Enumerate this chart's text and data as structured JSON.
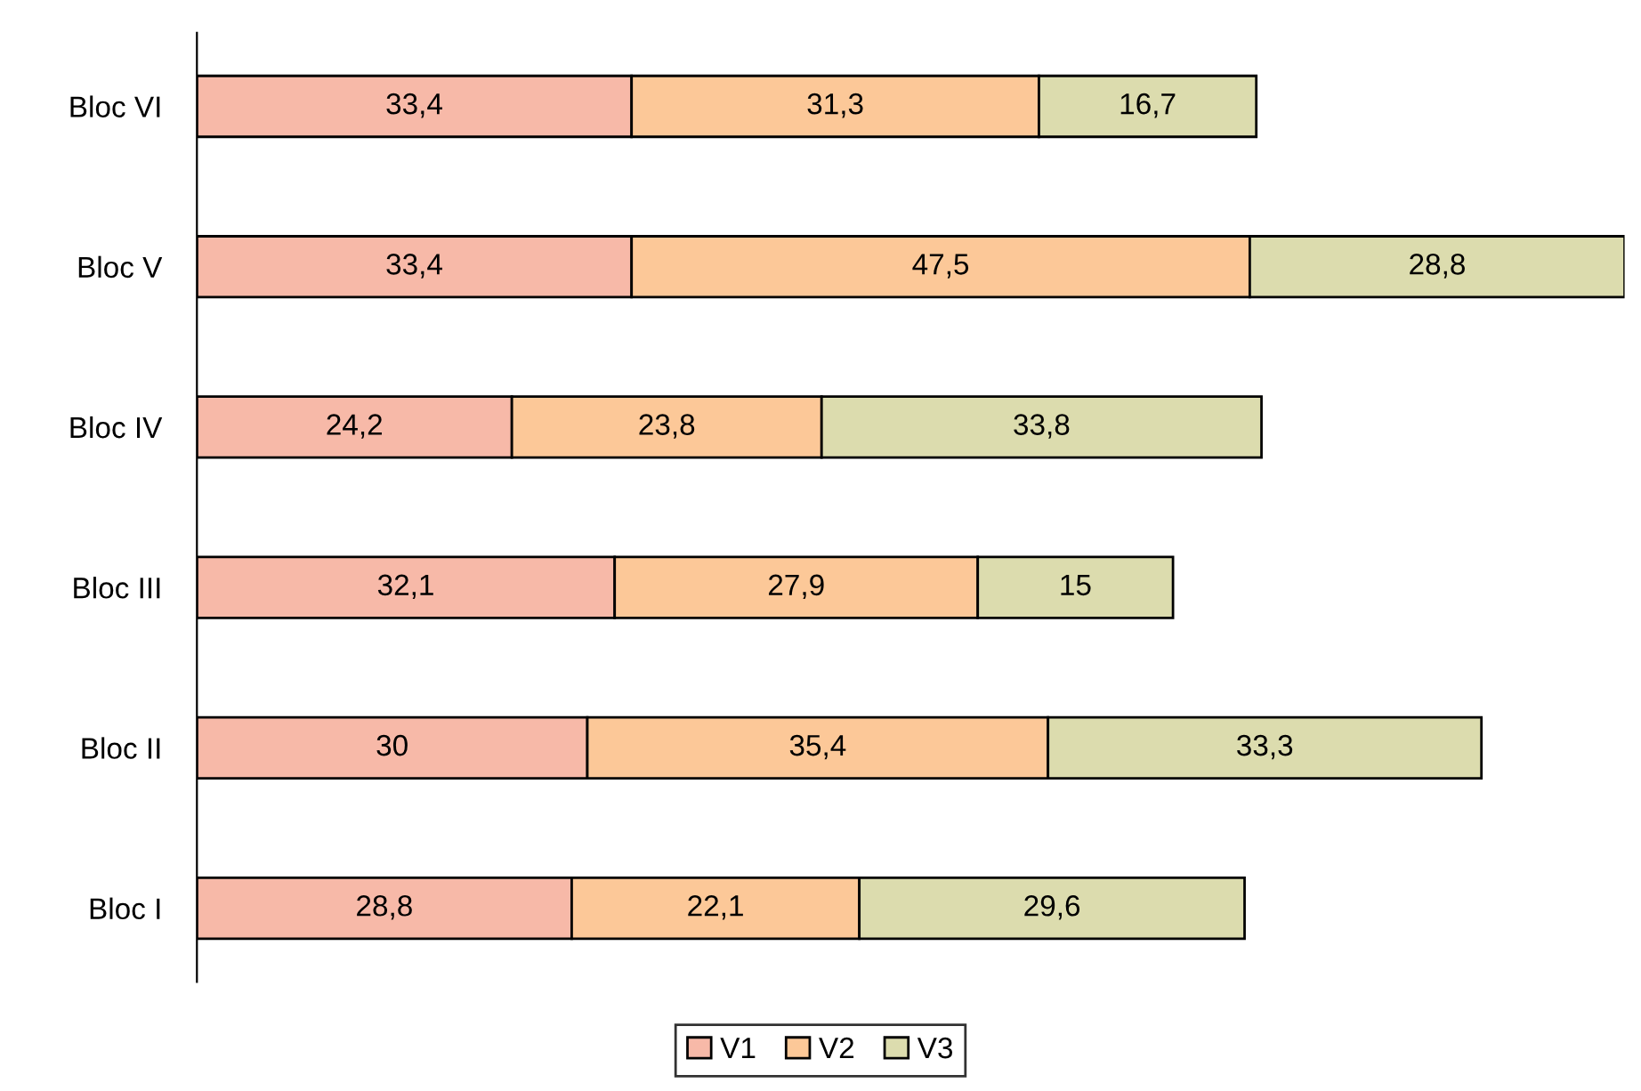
{
  "chart_data": {
    "type": "bar",
    "orientation": "horizontal",
    "stacked": true,
    "categories": [
      "Bloc VI",
      "Bloc V",
      "Bloc IV",
      "Bloc III",
      "Bloc II",
      "Bloc I"
    ],
    "series": [
      {
        "name": "V1",
        "color": "#f7b9a8",
        "values": [
          33.4,
          33.4,
          24.2,
          32.1,
          30,
          28.8
        ],
        "value_labels": [
          "33,4",
          "33,4",
          "24,2",
          "32,1",
          "30",
          "28,8"
        ]
      },
      {
        "name": "V2",
        "color": "#fcc898",
        "values": [
          31.3,
          47.5,
          23.8,
          27.9,
          35.4,
          22.1
        ],
        "value_labels": [
          "31,3",
          "47,5",
          "23,8",
          "27,9",
          "35,4",
          "22,1"
        ]
      },
      {
        "name": "V3",
        "color": "#dcdcae",
        "values": [
          16.7,
          28.8,
          33.8,
          15,
          33.3,
          29.6
        ],
        "value_labels": [
          "16,7",
          "28,8",
          "33,8",
          "15",
          "33,3",
          "29,6"
        ]
      }
    ],
    "legend": "bottom",
    "grid": false
  }
}
